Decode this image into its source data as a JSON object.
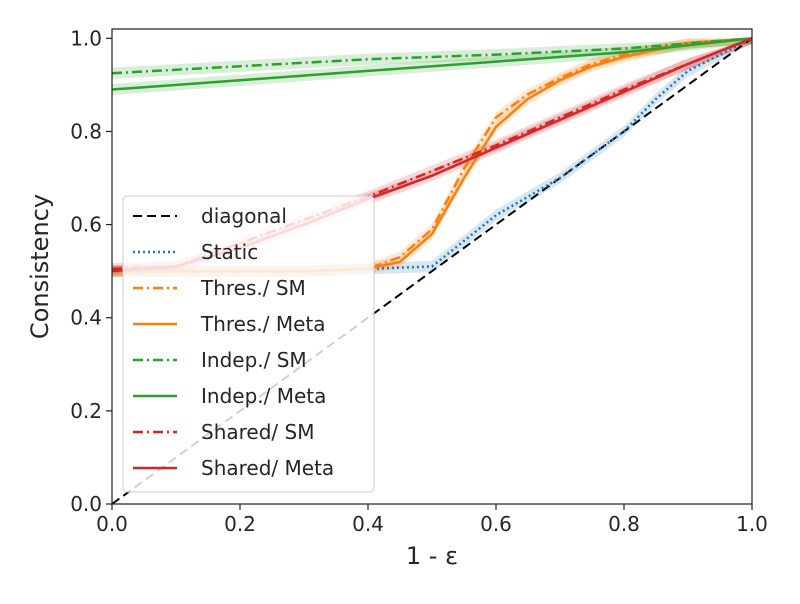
{
  "chart_data": {
    "type": "line",
    "xlabel": "1 - ε",
    "ylabel": "Consistency",
    "xlim": [
      0.0,
      1.0
    ],
    "ylim": [
      0.0,
      1.02
    ],
    "x_ticks": [
      "0.0",
      "0.2",
      "0.4",
      "0.6",
      "0.8",
      "1.0"
    ],
    "y_ticks": [
      "0.0",
      "0.2",
      "0.4",
      "0.6",
      "0.8",
      "1.0"
    ],
    "grid": false,
    "legend_position": "center-left",
    "series": [
      {
        "name": "diagonal",
        "color": "#000000",
        "style": "dashed",
        "x": [
          0.0,
          1.0
        ],
        "y": [
          0.0,
          1.0
        ]
      },
      {
        "name": "Static",
        "color": "#1f77b4",
        "style": "dotted",
        "x": [
          0.0,
          0.1,
          0.2,
          0.3,
          0.4,
          0.5,
          0.6,
          0.7,
          0.8,
          0.85,
          0.9,
          1.0
        ],
        "y": [
          0.5,
          0.5,
          0.5,
          0.5,
          0.505,
          0.51,
          0.62,
          0.7,
          0.8,
          0.87,
          0.93,
          1.0
        ]
      },
      {
        "name": "Thres./ SM",
        "color": "#ff7f0e",
        "style": "dashdot",
        "x": [
          0.0,
          0.1,
          0.2,
          0.3,
          0.4,
          0.45,
          0.5,
          0.55,
          0.6,
          0.65,
          0.7,
          0.75,
          0.8,
          0.9,
          1.0
        ],
        "y": [
          0.5,
          0.5,
          0.5,
          0.5,
          0.505,
          0.53,
          0.59,
          0.72,
          0.83,
          0.88,
          0.915,
          0.945,
          0.965,
          0.99,
          1.0
        ]
      },
      {
        "name": "Thres./ Meta",
        "color": "#ff7f0e",
        "style": "solid",
        "x": [
          0.0,
          0.1,
          0.2,
          0.3,
          0.4,
          0.45,
          0.5,
          0.55,
          0.6,
          0.65,
          0.7,
          0.75,
          0.8,
          0.9,
          1.0
        ],
        "y": [
          0.5,
          0.5,
          0.5,
          0.5,
          0.505,
          0.52,
          0.58,
          0.7,
          0.81,
          0.87,
          0.91,
          0.94,
          0.96,
          0.99,
          1.0
        ]
      },
      {
        "name": "Indep./ SM",
        "color": "#2ca02c",
        "style": "dashdot",
        "x": [
          0.0,
          0.2,
          0.4,
          0.6,
          0.8,
          1.0
        ],
        "y": [
          0.925,
          0.94,
          0.955,
          0.965,
          0.978,
          1.0
        ]
      },
      {
        "name": "Indep./ Meta",
        "color": "#2ca02c",
        "style": "solid",
        "x": [
          0.0,
          0.2,
          0.4,
          0.6,
          0.8,
          1.0
        ],
        "y": [
          0.89,
          0.91,
          0.93,
          0.95,
          0.97,
          1.0
        ]
      },
      {
        "name": "Shared/ SM",
        "color": "#d62728",
        "style": "dashdot",
        "x": [
          0.0,
          0.1,
          0.2,
          0.3,
          0.4,
          0.5,
          0.6,
          0.7,
          0.8,
          0.9,
          1.0
        ],
        "y": [
          0.505,
          0.51,
          0.56,
          0.61,
          0.66,
          0.715,
          0.77,
          0.83,
          0.89,
          0.945,
          1.0
        ]
      },
      {
        "name": "Shared/ Meta",
        "color": "#d62728",
        "style": "solid",
        "x": [
          0.0,
          0.1,
          0.2,
          0.3,
          0.4,
          0.5,
          0.6,
          0.7,
          0.8,
          0.9,
          1.0
        ],
        "y": [
          0.5,
          0.51,
          0.55,
          0.6,
          0.655,
          0.705,
          0.765,
          0.825,
          0.885,
          0.945,
          1.0
        ]
      }
    ]
  }
}
